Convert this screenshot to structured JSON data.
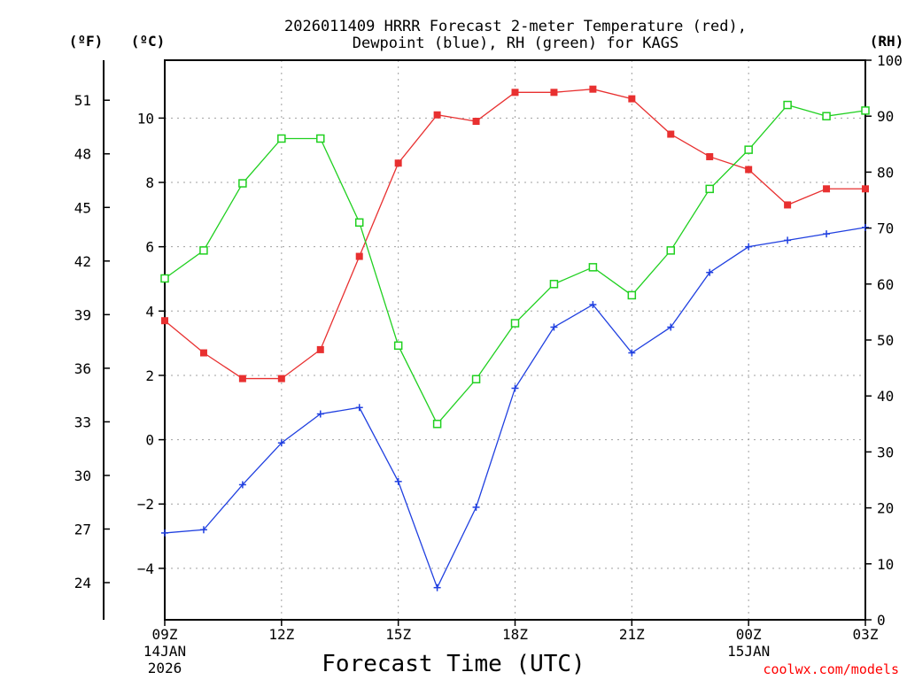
{
  "chart_data": {
    "type": "line",
    "title_line1": "2026011409 HRRR Forecast 2-meter Temperature (red),",
    "title_line2": "Dewpoint (blue), RH (green) for KAGS",
    "xlabel": "Forecast Time (UTC)",
    "credit": "coolwx.com/models",
    "unit_f": "(ºF)",
    "unit_c": "(ºC)",
    "unit_rh": "(RH)",
    "x_hours": [
      0,
      1,
      2,
      3,
      4,
      5,
      6,
      7,
      8,
      9,
      10,
      11,
      12,
      13,
      14,
      15,
      16,
      17,
      18
    ],
    "x_ticks": [
      {
        "h": 0,
        "label": "09Z",
        "sub1": "14JAN",
        "sub2": "2026"
      },
      {
        "h": 3,
        "label": "12Z",
        "sub1": "",
        "sub2": ""
      },
      {
        "h": 6,
        "label": "15Z",
        "sub1": "",
        "sub2": ""
      },
      {
        "h": 9,
        "label": "18Z",
        "sub1": "",
        "sub2": ""
      },
      {
        "h": 12,
        "label": "21Z",
        "sub1": "",
        "sub2": ""
      },
      {
        "h": 15,
        "label": "00Z",
        "sub1": "15JAN",
        "sub2": ""
      },
      {
        "h": 18,
        "label": "03Z",
        "sub1": "",
        "sub2": ""
      }
    ],
    "ylim_c": [
      -5.6,
      11.8
    ],
    "ylim_rh": [
      0,
      100
    ],
    "ticks_c": [
      -4,
      -2,
      0,
      2,
      4,
      6,
      8,
      10
    ],
    "tick_labels_c": [
      "−4",
      "−2",
      "0",
      "2",
      "4",
      "6",
      "8",
      "10"
    ],
    "ticks_f": [
      24,
      27,
      30,
      33,
      36,
      39,
      42,
      45,
      48,
      51
    ],
    "ticks_rh": [
      0,
      10,
      20,
      30,
      40,
      50,
      60,
      70,
      80,
      90,
      100
    ],
    "series": [
      {
        "name": "Temperature",
        "unit": "C",
        "color": "#e83030",
        "marker": "filled-square",
        "values": [
          3.7,
          2.7,
          1.9,
          1.9,
          2.8,
          5.7,
          8.6,
          10.1,
          9.9,
          10.8,
          10.8,
          10.9,
          10.6,
          9.5,
          8.8,
          8.4,
          7.3,
          7.8,
          7.8
        ]
      },
      {
        "name": "Dewpoint",
        "unit": "C",
        "color": "#2040e0",
        "marker": "plus",
        "values": [
          -2.9,
          -2.8,
          -1.4,
          -0.1,
          0.8,
          1.0,
          -1.3,
          -4.6,
          -2.1,
          1.6,
          3.5,
          4.2,
          2.7,
          3.5,
          5.2,
          6.0,
          6.2,
          6.4,
          6.6
        ]
      },
      {
        "name": "RH",
        "unit": "%",
        "color": "#20d020",
        "marker": "open-square",
        "values": [
          61,
          66,
          78,
          86,
          86,
          71,
          49,
          35,
          43,
          53,
          60,
          63,
          58,
          66,
          77,
          84,
          92,
          90,
          91
        ]
      }
    ]
  }
}
